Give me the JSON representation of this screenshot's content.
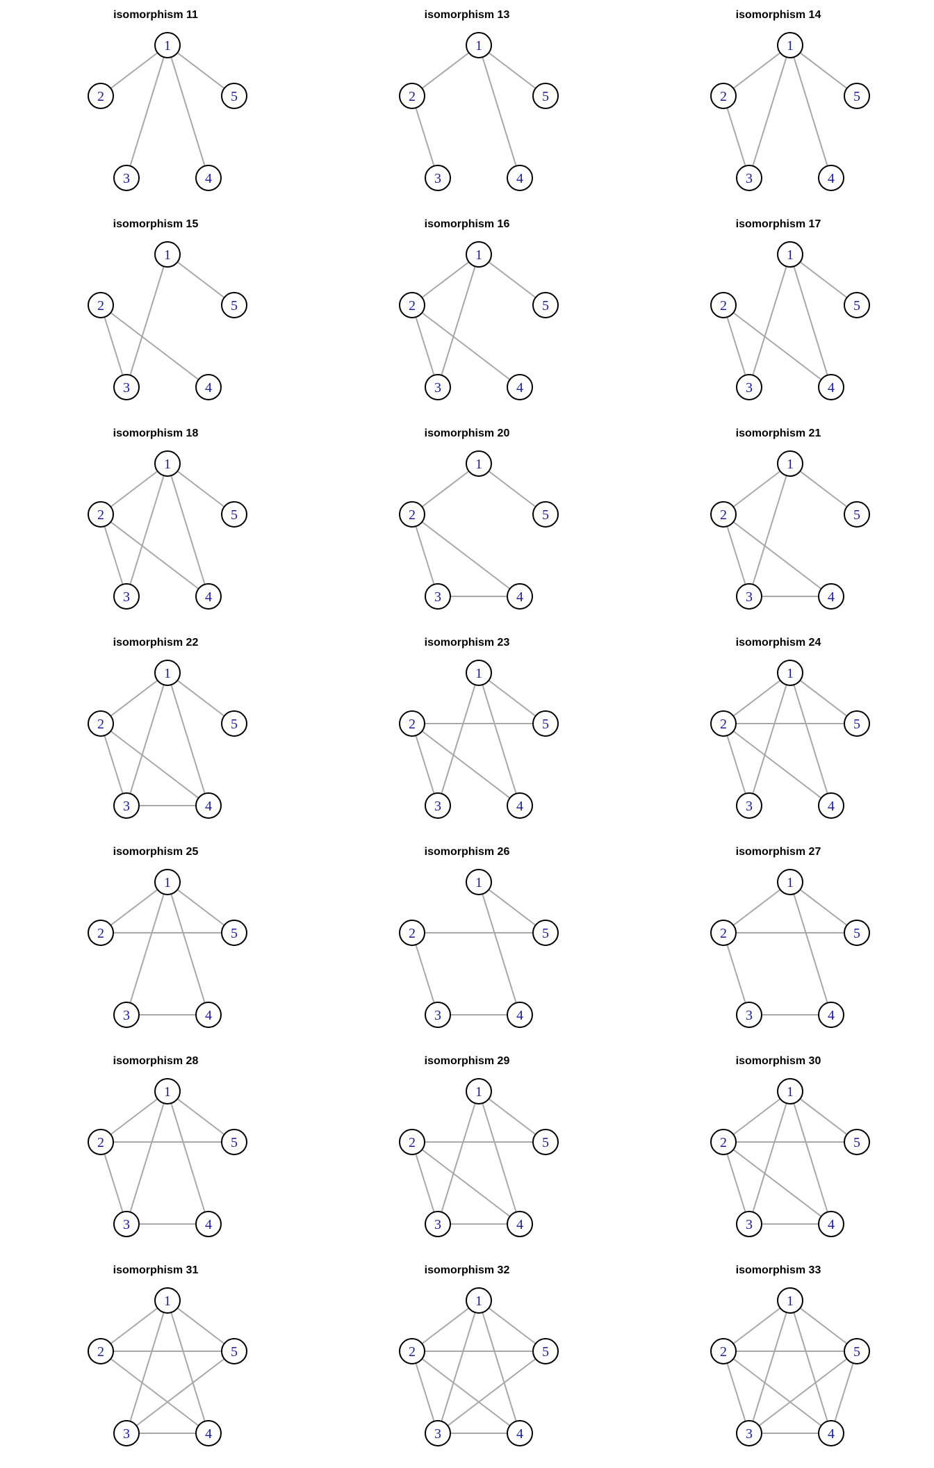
{
  "diagram": {
    "nodes": [
      "1",
      "2",
      "3",
      "4",
      "5"
    ],
    "panels": [
      {
        "title": "isomorphism 11",
        "edges": [
          [
            1,
            2
          ],
          [
            1,
            3
          ],
          [
            1,
            4
          ],
          [
            1,
            5
          ]
        ]
      },
      {
        "title": "isomorphism 13",
        "edges": [
          [
            1,
            2
          ],
          [
            1,
            4
          ],
          [
            1,
            5
          ],
          [
            2,
            3
          ]
        ]
      },
      {
        "title": "isomorphism 14",
        "edges": [
          [
            1,
            2
          ],
          [
            1,
            3
          ],
          [
            1,
            4
          ],
          [
            1,
            5
          ],
          [
            2,
            3
          ]
        ]
      },
      {
        "title": "isomorphism 15",
        "edges": [
          [
            1,
            3
          ],
          [
            1,
            5
          ],
          [
            2,
            3
          ],
          [
            2,
            4
          ]
        ]
      },
      {
        "title": "isomorphism 16",
        "edges": [
          [
            1,
            2
          ],
          [
            1,
            3
          ],
          [
            1,
            5
          ],
          [
            2,
            3
          ],
          [
            2,
            4
          ]
        ]
      },
      {
        "title": "isomorphism 17",
        "edges": [
          [
            1,
            3
          ],
          [
            1,
            4
          ],
          [
            1,
            5
          ],
          [
            2,
            3
          ],
          [
            2,
            4
          ]
        ]
      },
      {
        "title": "isomorphism 18",
        "edges": [
          [
            1,
            2
          ],
          [
            1,
            3
          ],
          [
            1,
            4
          ],
          [
            1,
            5
          ],
          [
            2,
            3
          ],
          [
            2,
            4
          ]
        ]
      },
      {
        "title": "isomorphism 20",
        "edges": [
          [
            1,
            2
          ],
          [
            1,
            5
          ],
          [
            2,
            3
          ],
          [
            2,
            4
          ],
          [
            3,
            4
          ]
        ]
      },
      {
        "title": "isomorphism 21",
        "edges": [
          [
            1,
            2
          ],
          [
            1,
            3
          ],
          [
            1,
            5
          ],
          [
            2,
            3
          ],
          [
            2,
            4
          ],
          [
            3,
            4
          ]
        ]
      },
      {
        "title": "isomorphism 22",
        "edges": [
          [
            1,
            2
          ],
          [
            1,
            3
          ],
          [
            1,
            4
          ],
          [
            1,
            5
          ],
          [
            2,
            3
          ],
          [
            2,
            4
          ],
          [
            3,
            4
          ]
        ]
      },
      {
        "title": "isomorphism 23",
        "edges": [
          [
            1,
            3
          ],
          [
            1,
            4
          ],
          [
            1,
            5
          ],
          [
            2,
            3
          ],
          [
            2,
            4
          ],
          [
            2,
            5
          ]
        ]
      },
      {
        "title": "isomorphism 24",
        "edges": [
          [
            1,
            2
          ],
          [
            1,
            3
          ],
          [
            1,
            4
          ],
          [
            1,
            5
          ],
          [
            2,
            3
          ],
          [
            2,
            4
          ],
          [
            2,
            5
          ]
        ]
      },
      {
        "title": "isomorphism 25",
        "edges": [
          [
            1,
            2
          ],
          [
            1,
            3
          ],
          [
            1,
            4
          ],
          [
            1,
            5
          ],
          [
            2,
            5
          ],
          [
            3,
            4
          ]
        ]
      },
      {
        "title": "isomorphism 26",
        "edges": [
          [
            1,
            4
          ],
          [
            1,
            5
          ],
          [
            2,
            3
          ],
          [
            2,
            5
          ],
          [
            3,
            4
          ]
        ]
      },
      {
        "title": "isomorphism 27",
        "edges": [
          [
            1,
            2
          ],
          [
            1,
            4
          ],
          [
            1,
            5
          ],
          [
            2,
            3
          ],
          [
            2,
            5
          ],
          [
            3,
            4
          ]
        ]
      },
      {
        "title": "isomorphism 28",
        "edges": [
          [
            1,
            2
          ],
          [
            1,
            3
          ],
          [
            1,
            4
          ],
          [
            1,
            5
          ],
          [
            2,
            3
          ],
          [
            2,
            5
          ],
          [
            3,
            4
          ]
        ]
      },
      {
        "title": "isomorphism 29",
        "edges": [
          [
            1,
            3
          ],
          [
            1,
            4
          ],
          [
            1,
            5
          ],
          [
            2,
            3
          ],
          [
            2,
            4
          ],
          [
            2,
            5
          ],
          [
            3,
            4
          ]
        ]
      },
      {
        "title": "isomorphism 30",
        "edges": [
          [
            1,
            2
          ],
          [
            1,
            3
          ],
          [
            1,
            4
          ],
          [
            1,
            5
          ],
          [
            2,
            3
          ],
          [
            2,
            4
          ],
          [
            2,
            5
          ],
          [
            3,
            4
          ]
        ]
      },
      {
        "title": "isomorphism 31",
        "edges": [
          [
            1,
            2
          ],
          [
            1,
            3
          ],
          [
            1,
            4
          ],
          [
            1,
            5
          ],
          [
            2,
            4
          ],
          [
            2,
            5
          ],
          [
            3,
            4
          ],
          [
            3,
            5
          ]
        ]
      },
      {
        "title": "isomorphism 32",
        "edges": [
          [
            1,
            2
          ],
          [
            1,
            3
          ],
          [
            1,
            4
          ],
          [
            1,
            5
          ],
          [
            2,
            3
          ],
          [
            2,
            4
          ],
          [
            2,
            5
          ],
          [
            3,
            4
          ],
          [
            3,
            5
          ]
        ]
      },
      {
        "title": "isomorphism 33",
        "edges": [
          [
            1,
            2
          ],
          [
            1,
            3
          ],
          [
            1,
            4
          ],
          [
            1,
            5
          ],
          [
            2,
            3
          ],
          [
            2,
            4
          ],
          [
            2,
            5
          ],
          [
            3,
            4
          ],
          [
            3,
            5
          ],
          [
            4,
            5
          ]
        ]
      }
    ]
  }
}
